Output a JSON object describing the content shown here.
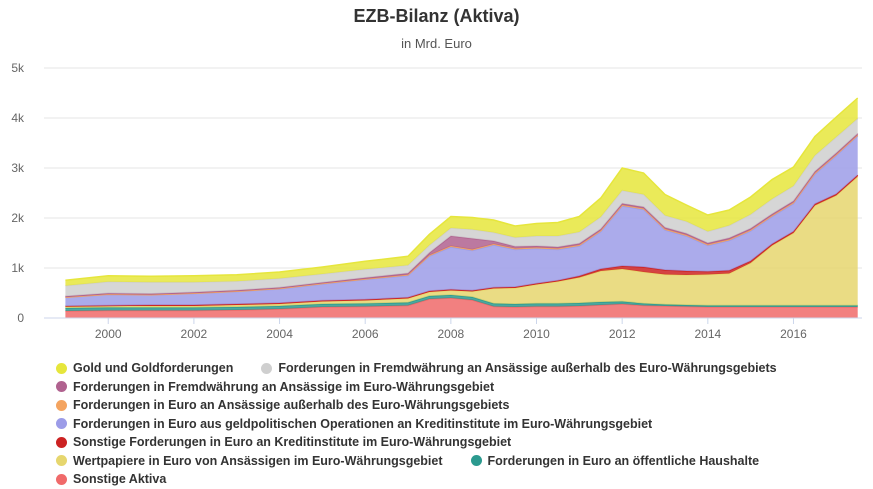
{
  "chart_data": {
    "type": "area",
    "stacked": true,
    "title": "EZB-Bilanz (Aktiva)",
    "subtitle": "in Mrd. Euro",
    "ylim": [
      0,
      5000
    ],
    "yticks": [
      {
        "value": 0,
        "label": "0"
      },
      {
        "value": 1000,
        "label": "1k"
      },
      {
        "value": 2000,
        "label": "2k"
      },
      {
        "value": 3000,
        "label": "3k"
      },
      {
        "value": 4000,
        "label": "4k"
      },
      {
        "value": 5000,
        "label": "5k"
      }
    ],
    "xlim": [
      1998.5,
      2017.6
    ],
    "xticks": [
      "2000",
      "2002",
      "2004",
      "2006",
      "2008",
      "2010",
      "2012",
      "2014",
      "2016"
    ],
    "grid": true,
    "legend_position": "bottom",
    "x": [
      1999.0,
      2000.0,
      2001.0,
      2002.0,
      2003.0,
      2004.0,
      2005.0,
      2006.0,
      2007.0,
      2007.5,
      2008.0,
      2008.5,
      2009.0,
      2009.5,
      2010.0,
      2010.5,
      2011.0,
      2011.5,
      2012.0,
      2012.5,
      2013.0,
      2013.5,
      2014.0,
      2014.5,
      2015.0,
      2015.5,
      2016.0,
      2016.5,
      2017.0,
      2017.5
    ],
    "series": [
      {
        "name": "Sonstige Aktiva",
        "color": "#f06a6a",
        "values": [
          140,
          150,
          150,
          150,
          160,
          180,
          220,
          230,
          250,
          380,
          400,
          360,
          230,
          220,
          230,
          230,
          240,
          260,
          280,
          250,
          240,
          230,
          220,
          220,
          220,
          220,
          220,
          220,
          220,
          220
        ]
      },
      {
        "name": "Forderungen in Euro an öffentliche Haushalte",
        "color": "#2b9a8f",
        "values": [
          60,
          60,
          60,
          60,
          60,
          60,
          60,
          60,
          60,
          60,
          60,
          60,
          60,
          60,
          60,
          60,
          60,
          60,
          50,
          40,
          30,
          30,
          30,
          30,
          30,
          30,
          30,
          30,
          30,
          30
        ]
      },
      {
        "name": "Wertpapiere in Euro von Ansässigen im Euro-Währungsgebiet",
        "color": "#e6d66e",
        "values": [
          30,
          30,
          30,
          30,
          40,
          40,
          50,
          60,
          80,
          80,
          90,
          110,
          300,
          320,
          380,
          440,
          510,
          620,
          650,
          630,
          600,
          600,
          620,
          640,
          850,
          1200,
          1450,
          2000,
          2200,
          2580
        ]
      },
      {
        "name": "Sonstige Forderungen in Euro an Kreditinstitute im Euro-Währungsgebiet",
        "color": "#cc2222",
        "values": [
          10,
          10,
          20,
          20,
          20,
          20,
          20,
          20,
          20,
          20,
          20,
          20,
          20,
          20,
          20,
          20,
          30,
          40,
          60,
          100,
          90,
          80,
          60,
          60,
          40,
          30,
          30,
          30,
          30,
          30
        ]
      },
      {
        "name": "Forderungen in Euro aus geldpolitischen Operationen an Kreditinstitute im Euro-Währungsgebiet",
        "color": "#9c9ce8",
        "values": [
          170,
          220,
          200,
          230,
          250,
          280,
          330,
          400,
          440,
          700,
          850,
          800,
          850,
          750,
          700,
          620,
          600,
          750,
          1200,
          1150,
          800,
          700,
          520,
          600,
          600,
          550,
          560,
          600,
          770,
          780
        ]
      },
      {
        "name": "Forderungen in Euro an Ansässige außerhalb des Euro-Währungsgebiets",
        "color": "#f4a460",
        "values": [
          5,
          5,
          5,
          5,
          5,
          10,
          10,
          10,
          15,
          15,
          20,
          20,
          20,
          20,
          20,
          20,
          20,
          20,
          20,
          20,
          20,
          20,
          20,
          20,
          20,
          20,
          20,
          20,
          20,
          20
        ]
      },
      {
        "name": "Forderungen in Fremdwährung an Ansässige im Euro-Währungsgebiet",
        "color": "#b0628f",
        "values": [
          20,
          20,
          20,
          20,
          20,
          20,
          20,
          25,
          30,
          50,
          200,
          220,
          60,
          40,
          30,
          30,
          30,
          30,
          30,
          30,
          30,
          30,
          30,
          30,
          30,
          30,
          30,
          30,
          30,
          30
        ]
      },
      {
        "name": "Forderungen in Fremdwährung an Ansässige außerhalb des Euro-Währungsgebiets",
        "color": "#cfcfcf",
        "values": [
          210,
          230,
          230,
          200,
          180,
          180,
          170,
          170,
          160,
          150,
          160,
          180,
          170,
          180,
          200,
          220,
          230,
          240,
          260,
          250,
          240,
          240,
          230,
          250,
          280,
          300,
          300,
          320,
          320,
          300
        ]
      },
      {
        "name": "Gold und Goldforderungen",
        "color": "#e6e63c",
        "values": [
          110,
          120,
          120,
          130,
          130,
          130,
          140,
          160,
          180,
          220,
          230,
          240,
          250,
          230,
          250,
          270,
          310,
          380,
          450,
          430,
          420,
          330,
          330,
          310,
          350,
          390,
          380,
          380,
          400,
          410
        ]
      }
    ]
  },
  "legend": {
    "rows": [
      [
        {
          "label": "Gold und Goldforderungen",
          "color": "#e6e63c"
        },
        {
          "label": "Forderungen in Fremdwährung an Ansässige außerhalb des Euro-Währungsgebiets",
          "color": "#cfcfcf"
        }
      ],
      [
        {
          "label": "Forderungen in Fremdwährung an Ansässige im Euro-Währungsgebiet",
          "color": "#b0628f"
        }
      ],
      [
        {
          "label": "Forderungen in Euro an Ansässige außerhalb des Euro-Währungsgebiets",
          "color": "#f4a460"
        }
      ],
      [
        {
          "label": "Forderungen in Euro aus geldpolitischen Operationen an Kreditinstitute im Euro-Währungsgebiet",
          "color": "#9c9ce8"
        }
      ],
      [
        {
          "label": "Sonstige Forderungen in Euro an Kreditinstitute im Euro-Währungsgebiet",
          "color": "#cc2222"
        }
      ],
      [
        {
          "label": "Wertpapiere in Euro von Ansässigen im Euro-Währungsgebiet",
          "color": "#e6d66e"
        },
        {
          "label": "Forderungen in Euro an öffentliche Haushalte",
          "color": "#2b9a8f"
        }
      ],
      [
        {
          "label": "Sonstige Aktiva",
          "color": "#f06a6a"
        }
      ]
    ]
  }
}
